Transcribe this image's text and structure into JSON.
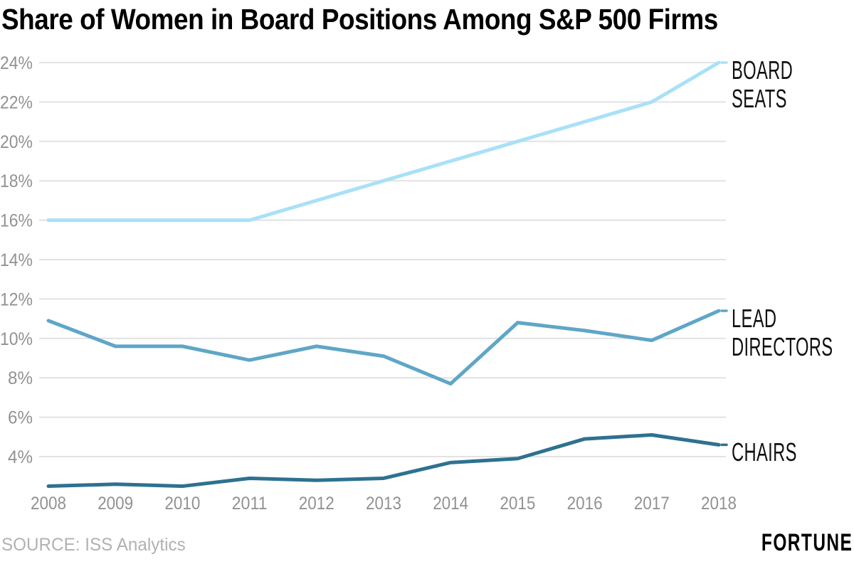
{
  "title": "Share of Women in Board Positions Among S&P 500 Firms",
  "source": "SOURCE: ISS Analytics",
  "brand": "FORTUNE",
  "colors": {
    "gridline": "#e2e2e2",
    "axis_text": "#929292",
    "title_text": "#000000",
    "source_text": "#b1b1b1"
  },
  "chart_data": {
    "type": "line",
    "title": "Share of Women in Board Positions Among S&P 500 Firms",
    "x": [
      2008,
      2009,
      2010,
      2011,
      2012,
      2013,
      2014,
      2015,
      2016,
      2017,
      2018
    ],
    "xlabel": "",
    "ylabel": "",
    "ylim": [
      2,
      25
    ],
    "yticks": [
      4,
      6,
      8,
      10,
      12,
      14,
      16,
      18,
      20,
      22,
      24
    ],
    "ytick_suffix": "%",
    "grid": true,
    "legend_position": "right-of-line-end",
    "series": [
      {
        "name": "BOARD SEATS",
        "label_lines": [
          "BOARD",
          "SEATS"
        ],
        "color": "#a8e1f8",
        "values": [
          16,
          16,
          16,
          16,
          17,
          18,
          19,
          20,
          21,
          22,
          24
        ]
      },
      {
        "name": "LEAD DIRECTORS",
        "label_lines": [
          "LEAD",
          "DIRECTORS"
        ],
        "color": "#5fa6c7",
        "values": [
          10.9,
          9.6,
          9.6,
          8.9,
          9.6,
          9.1,
          7.7,
          10.8,
          10.4,
          9.9,
          11.4
        ]
      },
      {
        "name": "CHAIRS",
        "label_lines": [
          "CHAIRS"
        ],
        "color": "#2e7190",
        "values": [
          2.5,
          2.6,
          2.5,
          2.9,
          2.8,
          2.9,
          3.7,
          3.9,
          4.9,
          5.1,
          4.6
        ]
      }
    ]
  }
}
